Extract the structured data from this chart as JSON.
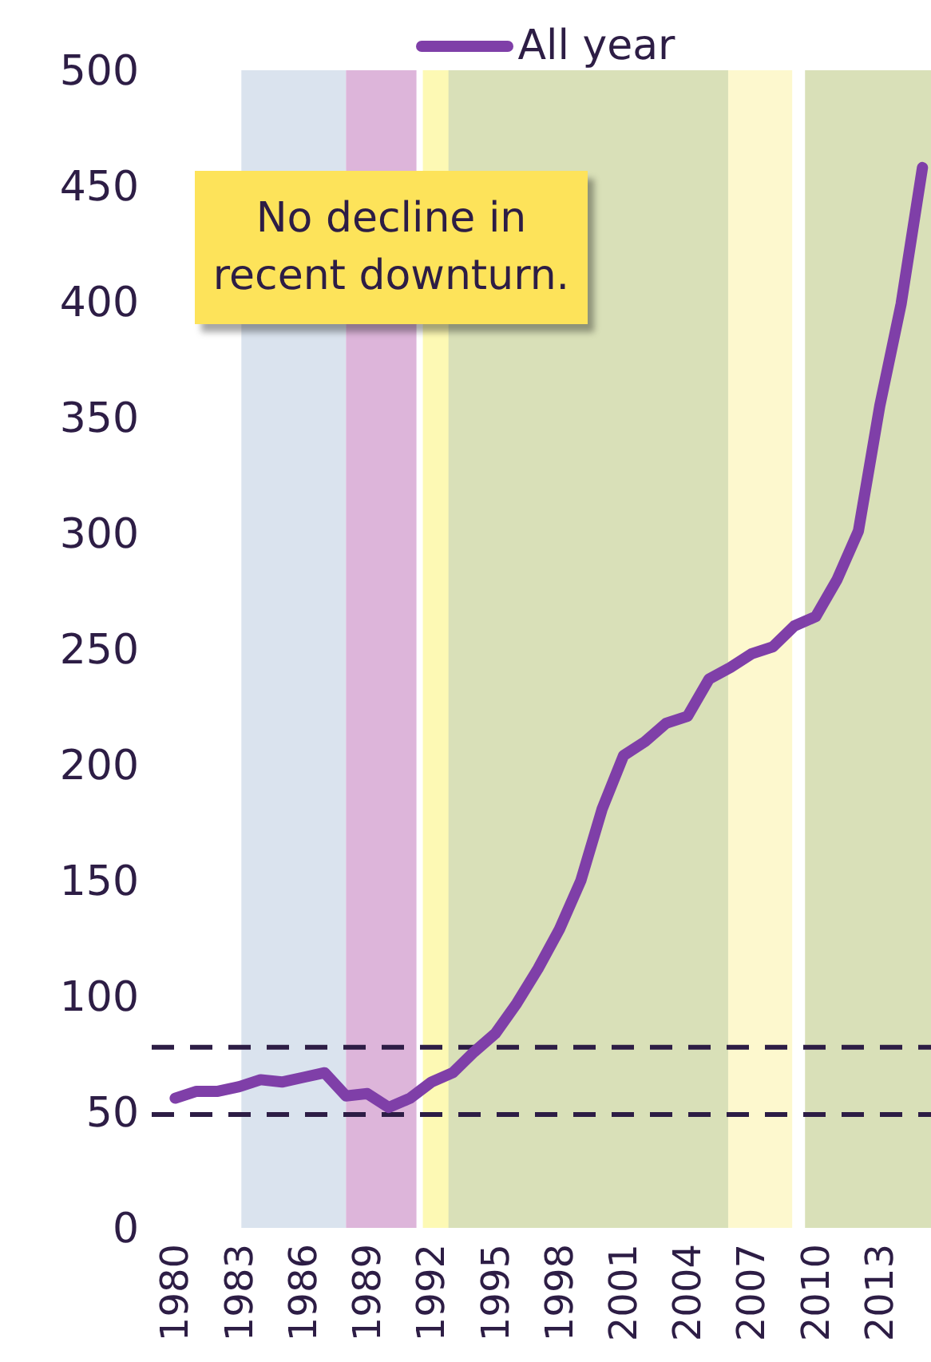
{
  "chart_data": {
    "type": "line",
    "x": [
      1980,
      1981,
      1982,
      1983,
      1984,
      1985,
      1986,
      1987,
      1988,
      1989,
      1990,
      1991,
      1992,
      1993,
      1994,
      1995,
      1996,
      1997,
      1998,
      1999,
      2000,
      2001,
      2002,
      2003,
      2004,
      2005,
      2006,
      2007,
      2008,
      2009,
      2010,
      2011,
      2012,
      2013,
      2014,
      2015
    ],
    "series": [
      {
        "name": "All year",
        "color": "#7f3fa8",
        "values": [
          56,
          59,
          59,
          61,
          64,
          63,
          65,
          67,
          57,
          58,
          52,
          56,
          63,
          67,
          76,
          84,
          97,
          112,
          129,
          150,
          181,
          204,
          210,
          218,
          221,
          237,
          242,
          248,
          251,
          260,
          264,
          280,
          301,
          355,
          399,
          458
        ]
      }
    ],
    "xlim": [
      1978.9,
      2015.4
    ],
    "xticks": [
      1980,
      1983,
      1986,
      1989,
      1992,
      1995,
      1998,
      2001,
      2004,
      2007,
      2010,
      2013
    ],
    "ylim": [
      0,
      500
    ],
    "yticks": [
      0,
      50,
      100,
      150,
      200,
      250,
      300,
      350,
      400,
      450,
      500
    ],
    "grid": false,
    "legend": "top",
    "bands": [
      {
        "axis": "x",
        "from": 1983.1,
        "to": 1988,
        "color": "#dae3ee"
      },
      {
        "axis": "x",
        "from": 1988,
        "to": 1991.3,
        "color": "#ddb5da"
      },
      {
        "axis": "x",
        "from": 1991.6,
        "to": 1993,
        "color": "#fdf9b4"
      },
      {
        "axis": "x",
        "from": 1992.8,
        "to": 2005.9,
        "color": "#d9e0b8"
      },
      {
        "axis": "x",
        "from": 2005.9,
        "to": 2008.9,
        "color": "#fdf8ce"
      },
      {
        "axis": "x",
        "from": 2009.5,
        "to": 2015.4,
        "color": "#d9e0b8"
      }
    ],
    "ref_lines": [
      {
        "axis": "y",
        "value": 78,
        "color": "#2d1d45",
        "line_style": "dashed"
      },
      {
        "axis": "y",
        "value": 49,
        "color": "#2d1d45",
        "line_style": "dashed"
      }
    ],
    "annotations": [
      "No decline in recent downturn."
    ]
  }
}
